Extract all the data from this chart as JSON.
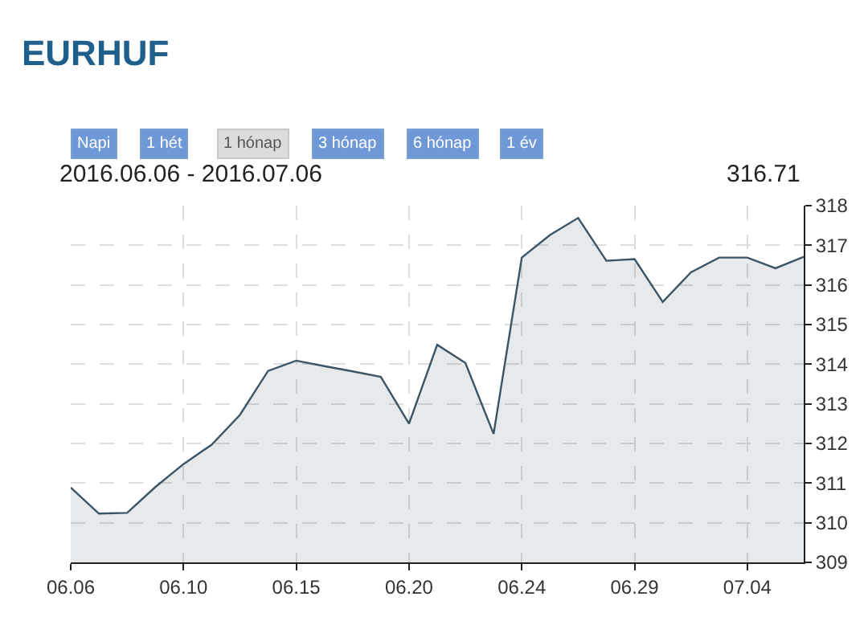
{
  "chart_data": {
    "type": "area",
    "title": "EURHUF",
    "subtitle": "2016.06.06 - 2016.07.06",
    "annotations": [
      "316.71",
      "Napi",
      "1 hét",
      "1 hónap",
      "3 hónap",
      "6 hónap",
      "1 év"
    ],
    "categories": [
      "06.06",
      null,
      null,
      null,
      "06.10",
      null,
      null,
      null,
      "06.15",
      null,
      null,
      null,
      "06.20",
      null,
      null,
      null,
      "06.24",
      null,
      null,
      null,
      "06.29",
      null,
      null,
      null,
      "07.04",
      null,
      null
    ],
    "series": [
      {
        "color": "#3b5566",
        "values": [
          310.89,
          310.23,
          310.25,
          310.9,
          311.48,
          311.97,
          312.72,
          313.83,
          314.09,
          313.95,
          313.82,
          313.68,
          312.5,
          314.49,
          314.03,
          312.24,
          316.69,
          317.26,
          317.69,
          316.61,
          316.65,
          315.57,
          316.32,
          316.69,
          316.69,
          316.42,
          316.71
        ]
      }
    ],
    "ylim": [
      309,
      318
    ],
    "yticks": [
      309,
      310,
      311,
      312,
      313,
      314,
      315,
      316,
      317,
      318
    ],
    "grid": true
  }
}
